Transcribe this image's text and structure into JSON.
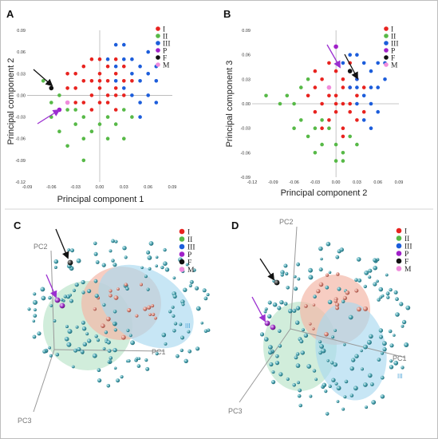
{
  "colors": {
    "I": "#e8231f",
    "II": "#57b947",
    "III": "#1c5ddb",
    "P": "#a020c8",
    "F": "#111111",
    "M": "#f08cdc",
    "sphere_teal": "#2e8e9e",
    "ellipse_red": "#f3b8a8",
    "ellipse_green": "#b9e3c8",
    "ellipse_blue": "#a9d8ef"
  },
  "panels": {
    "A": {
      "letter": "A"
    },
    "B": {
      "letter": "B"
    },
    "C": {
      "letter": "C",
      "pc1": "PC1",
      "pc2": "PC2",
      "pc3": "PC3",
      "cluster": "III"
    },
    "D": {
      "letter": "D",
      "pc1": "PC1",
      "pc2": "PC2",
      "pc3": "PC3",
      "cluster": "III"
    }
  },
  "chart_data": [
    {
      "panel": "A",
      "type": "scatter",
      "xlabel": "Principal component 1",
      "ylabel": "Principal component 2",
      "xlim": [
        -0.09,
        0.09
      ],
      "ylim": [
        -0.12,
        0.09
      ],
      "xticks": [
        "-0.09",
        "-0.06",
        "-0.03",
        "0.00",
        "0.03",
        "0.06",
        "0.09"
      ],
      "yticks": [
        "-0.12",
        "-0.09",
        "-0.06",
        "-0.03",
        "0.00",
        "0.03",
        "0.06",
        "0.09"
      ],
      "grid": false,
      "legend": "top-right",
      "series": [
        {
          "name": "I",
          "color": "#e8231f",
          "points": [
            [
              -0.04,
              0.03
            ],
            [
              -0.03,
              0.01
            ],
            [
              -0.02,
              0.04
            ],
            [
              -0.02,
              -0.01
            ],
            [
              -0.01,
              0.02
            ],
            [
              -0.01,
              0.0
            ],
            [
              0.0,
              0.03
            ],
            [
              0.0,
              0.01
            ],
            [
              0.0,
              -0.01
            ],
            [
              0.01,
              0.04
            ],
            [
              0.01,
              0.02
            ],
            [
              0.01,
              0.0
            ],
            [
              0.02,
              0.01
            ],
            [
              0.02,
              0.03
            ],
            [
              0.02,
              -0.02
            ],
            [
              0.03,
              0.02
            ],
            [
              0.03,
              0.0
            ],
            [
              -0.03,
              0.03
            ],
            [
              -0.02,
              0.02
            ],
            [
              -0.01,
              0.05
            ],
            [
              0.0,
              0.05
            ],
            [
              0.01,
              -0.01
            ],
            [
              -0.03,
              -0.01
            ],
            [
              0.02,
              0.05
            ],
            [
              0.03,
              0.04
            ],
            [
              -0.04,
              0.01
            ],
            [
              -0.01,
              -0.02
            ],
            [
              0.0,
              0.02
            ],
            [
              0.02,
              0.0
            ],
            [
              0.04,
              0.02
            ]
          ]
        },
        {
          "name": "II",
          "color": "#57b947",
          "points": [
            [
              -0.06,
              -0.03
            ],
            [
              -0.05,
              -0.05
            ],
            [
              -0.04,
              -0.02
            ],
            [
              -0.03,
              -0.04
            ],
            [
              -0.02,
              -0.03
            ],
            [
              -0.01,
              -0.05
            ],
            [
              0.0,
              -0.04
            ],
            [
              0.01,
              -0.03
            ],
            [
              0.02,
              -0.04
            ],
            [
              0.03,
              -0.02
            ],
            [
              -0.02,
              -0.06
            ],
            [
              -0.05,
              0.0
            ],
            [
              0.01,
              -0.06
            ],
            [
              -0.03,
              -0.02
            ],
            [
              0.04,
              -0.03
            ],
            [
              -0.07,
              0.02
            ],
            [
              -0.06,
              -0.01
            ],
            [
              -0.04,
              -0.07
            ],
            [
              0.03,
              -0.06
            ],
            [
              -0.02,
              -0.09
            ]
          ]
        },
        {
          "name": "III",
          "color": "#1c5ddb",
          "points": [
            [
              0.01,
              0.05
            ],
            [
              0.02,
              0.04
            ],
            [
              0.03,
              0.05
            ],
            [
              0.04,
              0.03
            ],
            [
              0.05,
              0.02
            ],
            [
              0.05,
              0.04
            ],
            [
              0.06,
              0.03
            ],
            [
              0.07,
              0.02
            ],
            [
              0.03,
              0.01
            ],
            [
              0.04,
              0.0
            ],
            [
              0.05,
              -0.01
            ],
            [
              0.06,
              0.0
            ],
            [
              0.02,
              0.07
            ],
            [
              0.03,
              0.07
            ],
            [
              0.07,
              0.04
            ],
            [
              0.04,
              0.05
            ],
            [
              0.06,
              0.06
            ],
            [
              0.05,
              -0.03
            ],
            [
              0.07,
              -0.01
            ],
            [
              0.02,
              0.02
            ]
          ]
        },
        {
          "name": "P",
          "color": "#a020c8",
          "points": [
            [
              -0.05,
              -0.02
            ]
          ]
        },
        {
          "name": "F",
          "color": "#111111",
          "points": [
            [
              -0.06,
              0.01
            ]
          ]
        },
        {
          "name": "M",
          "color": "#f08cdc",
          "points": [
            [
              -0.04,
              -0.01
            ]
          ]
        }
      ]
    },
    {
      "panel": "B",
      "type": "scatter",
      "xlabel": "Principal component 2",
      "ylabel": "Principal component 3",
      "xlim": [
        -0.12,
        0.09
      ],
      "ylim": [
        -0.09,
        0.09
      ],
      "xticks": [
        "-0.12",
        "-0.09",
        "-0.06",
        "-0.03",
        "0.00",
        "0.03",
        "0.06",
        "0.09"
      ],
      "yticks": [
        "-0.09",
        "-0.06",
        "-0.03",
        "0.00",
        "0.03",
        "0.06",
        "0.09"
      ],
      "grid": false,
      "legend": "top-right",
      "series": [
        {
          "name": "I",
          "color": "#e8231f",
          "points": [
            [
              -0.03,
              0.02
            ],
            [
              -0.02,
              0.0
            ],
            [
              -0.01,
              0.02
            ],
            [
              0.0,
              0.01
            ],
            [
              0.0,
              -0.01
            ],
            [
              0.01,
              0.03
            ],
            [
              0.01,
              0.0
            ],
            [
              0.02,
              0.02
            ],
            [
              0.02,
              -0.01
            ],
            [
              0.03,
              0.01
            ],
            [
              -0.02,
              0.03
            ],
            [
              -0.01,
              -0.02
            ],
            [
              0.0,
              0.04
            ],
            [
              0.01,
              -0.03
            ],
            [
              0.02,
              0.04
            ],
            [
              0.03,
              -0.02
            ],
            [
              -0.03,
              -0.01
            ],
            [
              0.04,
              0.02
            ],
            [
              -0.01,
              0.01
            ],
            [
              0.01,
              0.02
            ],
            [
              -0.04,
              0.01
            ],
            [
              0.0,
              0.0
            ],
            [
              0.02,
              0.0
            ],
            [
              -0.02,
              -0.03
            ],
            [
              0.03,
              0.03
            ],
            [
              -0.01,
              0.05
            ],
            [
              0.01,
              -0.04
            ],
            [
              0.04,
              -0.01
            ],
            [
              -0.03,
              0.04
            ],
            [
              0.02,
              0.05
            ]
          ]
        },
        {
          "name": "II",
          "color": "#57b947",
          "points": [
            [
              -0.06,
              0.0
            ],
            [
              -0.05,
              -0.02
            ],
            [
              -0.04,
              -0.04
            ],
            [
              -0.03,
              -0.03
            ],
            [
              -0.02,
              -0.05
            ],
            [
              -0.01,
              -0.03
            ],
            [
              0.0,
              -0.05
            ],
            [
              0.01,
              -0.06
            ],
            [
              -0.05,
              0.02
            ],
            [
              -0.07,
              0.01
            ],
            [
              -0.04,
              0.03
            ],
            [
              0.02,
              -0.04
            ],
            [
              -0.1,
              0.01
            ],
            [
              -0.03,
              -0.06
            ],
            [
              0.0,
              -0.07
            ],
            [
              -0.06,
              -0.03
            ],
            [
              0.03,
              -0.05
            ],
            [
              -0.02,
              -0.02
            ],
            [
              0.01,
              -0.07
            ],
            [
              -0.08,
              0.0
            ]
          ]
        },
        {
          "name": "III",
          "color": "#1c5ddb",
          "points": [
            [
              0.02,
              0.04
            ],
            [
              0.03,
              0.03
            ],
            [
              0.04,
              0.01
            ],
            [
              0.05,
              0.02
            ],
            [
              0.05,
              0.0
            ],
            [
              0.06,
              -0.01
            ],
            [
              0.04,
              0.05
            ],
            [
              0.03,
              0.06
            ],
            [
              0.02,
              0.06
            ],
            [
              0.05,
              0.04
            ],
            [
              0.06,
              0.02
            ],
            [
              0.07,
              0.03
            ],
            [
              0.04,
              -0.02
            ],
            [
              0.03,
              0.0
            ],
            [
              0.02,
              0.02
            ],
            [
              0.01,
              0.05
            ],
            [
              0.06,
              0.05
            ],
            [
              0.07,
              0.05
            ],
            [
              0.05,
              -0.03
            ],
            [
              0.03,
              0.02
            ]
          ]
        },
        {
          "name": "P",
          "color": "#a020c8",
          "points": [
            [
              0.0,
              0.07
            ]
          ]
        },
        {
          "name": "F",
          "color": "#111111",
          "points": [
            [
              0.02,
              0.04
            ]
          ]
        },
        {
          "name": "M",
          "color": "#f08cdc",
          "points": [
            [
              -0.01,
              0.02
            ]
          ]
        }
      ]
    }
  ],
  "legend_entries": [
    "I",
    "II",
    "III",
    "P",
    "F",
    "M"
  ]
}
